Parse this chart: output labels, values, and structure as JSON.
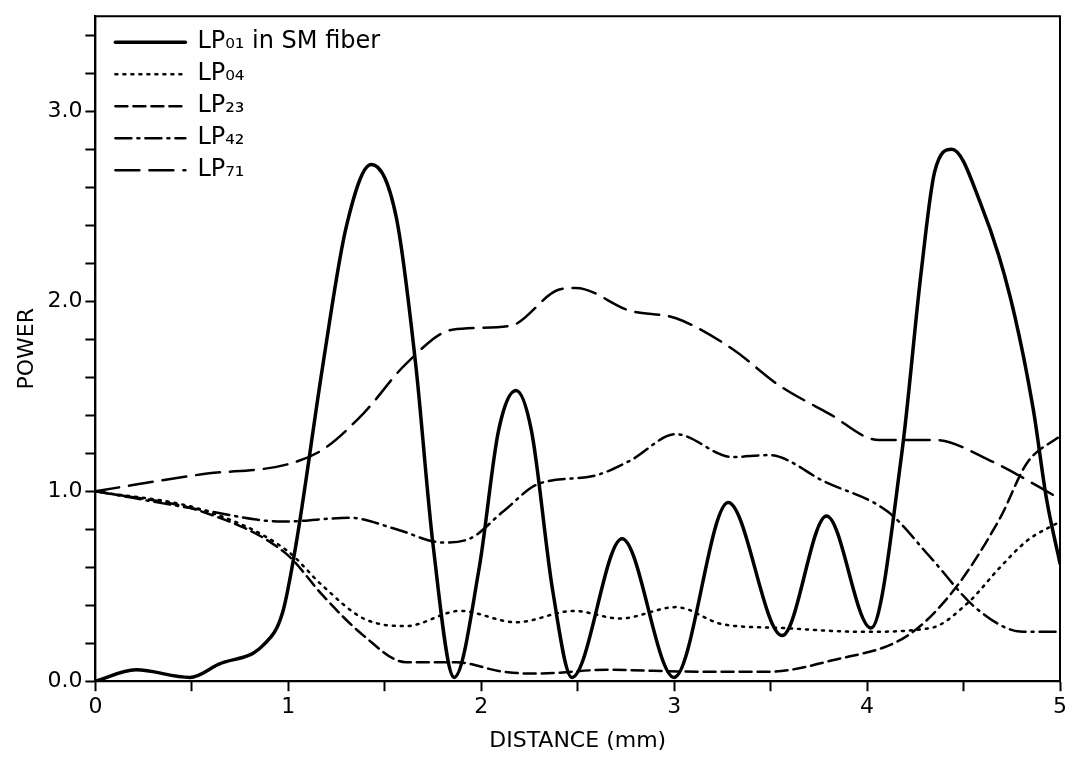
{
  "chart_data": {
    "type": "line",
    "xlabel": "DISTANCE (mm)",
    "ylabel": "POWER",
    "xlim": [
      0,
      5
    ],
    "ylim": [
      0,
      3.5
    ],
    "xticks": [
      0,
      {
        "value": 0.5,
        "label": null
      },
      1,
      {
        "value": 1.5,
        "label": null
      },
      2,
      {
        "value": 2.5,
        "label": null
      },
      3,
      {
        "value": 3.5,
        "label": null
      },
      4,
      {
        "value": 4.5,
        "label": null
      },
      5
    ],
    "yticks": [
      {
        "value": 0,
        "label": "0.0"
      },
      {
        "value": 0.2,
        "label": null
      },
      {
        "value": 0.4,
        "label": null
      },
      {
        "value": 0.6,
        "label": null
      },
      {
        "value": 0.8,
        "label": null
      },
      {
        "value": 1,
        "label": "1.0"
      },
      {
        "value": 1.2,
        "label": null
      },
      {
        "value": 1.4,
        "label": null
      },
      {
        "value": 1.6,
        "label": null
      },
      {
        "value": 1.8,
        "label": null
      },
      {
        "value": 2,
        "label": "2.0"
      },
      {
        "value": 2.2,
        "label": null
      },
      {
        "value": 2.4,
        "label": null
      },
      {
        "value": 2.6,
        "label": null
      },
      {
        "value": 2.8,
        "label": null
      },
      {
        "value": 3,
        "label": "3.0"
      },
      {
        "value": 3.2,
        "label": null
      },
      {
        "value": 3.4,
        "label": null
      }
    ],
    "grid": false,
    "legend": "top left",
    "marker": "none",
    "series": [
      {
        "name": "LP₀₁ in SM fiber",
        "color": "#000000",
        "line_style": "solid",
        "x": [
          0,
          0.21,
          0.49,
          0.64,
          0.87,
          0.97,
          1.04,
          1.18,
          1.3,
          1.43,
          1.56,
          1.66,
          1.75,
          1.86,
          1.99,
          2.09,
          2.18,
          2.26,
          2.37,
          2.47,
          2.73,
          3.0,
          3.28,
          3.56,
          3.79,
          4.02,
          4.18,
          4.28,
          4.35,
          4.44,
          4.59,
          4.74,
          4.86,
          4.93,
          5.0
        ],
        "values": [
          0,
          0.06,
          0.02,
          0.09,
          0.19,
          0.36,
          0.72,
          1.67,
          2.39,
          2.72,
          2.44,
          1.67,
          0.72,
          0.02,
          0.6,
          1.32,
          1.53,
          1.32,
          0.48,
          0.02,
          0.75,
          0.02,
          0.94,
          0.24,
          0.87,
          0.28,
          1.2,
          2.15,
          2.68,
          2.8,
          2.51,
          2.03,
          1.44,
          0.96,
          0.62
        ]
      },
      {
        "name": "LP₀₄",
        "color": "#000000",
        "line_style": "dotted",
        "x": [
          0,
          0.56,
          0.99,
          1.18,
          1.39,
          1.61,
          1.89,
          2.18,
          2.48,
          2.72,
          3.01,
          3.25,
          3.56,
          3.97,
          4.33,
          4.52,
          4.69,
          4.83,
          5.0
        ],
        "values": [
          1,
          0.9,
          0.69,
          0.5,
          0.33,
          0.29,
          0.37,
          0.31,
          0.37,
          0.33,
          0.39,
          0.3,
          0.28,
          0.26,
          0.28,
          0.41,
          0.6,
          0.74,
          0.84
        ]
      },
      {
        "name": "LP₂₃",
        "color": "#000000",
        "line_style": "dashed",
        "x": [
          0,
          0.56,
          0.99,
          1.18,
          1.39,
          1.61,
          1.87,
          2.11,
          2.29,
          2.65,
          3.13,
          3.49,
          3.82,
          4.21,
          4.45,
          4.69,
          4.83,
          5.0
        ],
        "values": [
          1,
          0.89,
          0.67,
          0.45,
          0.24,
          0.1,
          0.1,
          0.05,
          0.04,
          0.06,
          0.05,
          0.05,
          0.11,
          0.24,
          0.48,
          0.86,
          1.15,
          1.29
        ]
      },
      {
        "name": "LP₄₂",
        "color": "#000000",
        "line_style": "dashdot",
        "x": [
          0,
          0.56,
          0.97,
          1.32,
          1.56,
          1.8,
          1.94,
          2.11,
          2.3,
          2.58,
          2.77,
          3.01,
          3.3,
          3.49,
          3.78,
          4.11,
          4.33,
          4.57,
          4.81,
          5.0
        ],
        "values": [
          1,
          0.9,
          0.84,
          0.86,
          0.8,
          0.73,
          0.75,
          0.89,
          1.04,
          1.08,
          1.16,
          1.3,
          1.18,
          1.19,
          1.05,
          0.89,
          0.65,
          0.38,
          0.26,
          0.26
        ]
      },
      {
        "name": "LP₇₁",
        "color": "#000000",
        "line_style": "longdash",
        "x": [
          0,
          0.56,
          0.99,
          1.18,
          1.39,
          1.61,
          1.85,
          2.15,
          2.4,
          2.49,
          2.77,
          3.01,
          3.3,
          3.54,
          3.8,
          4.06,
          4.35,
          4.64,
          5.0
        ],
        "values": [
          1,
          1.09,
          1.14,
          1.22,
          1.41,
          1.67,
          1.85,
          1.87,
          2.06,
          2.07,
          1.95,
          1.91,
          1.75,
          1.56,
          1.41,
          1.27,
          1.27,
          1.16,
          0.96
        ]
      }
    ]
  }
}
